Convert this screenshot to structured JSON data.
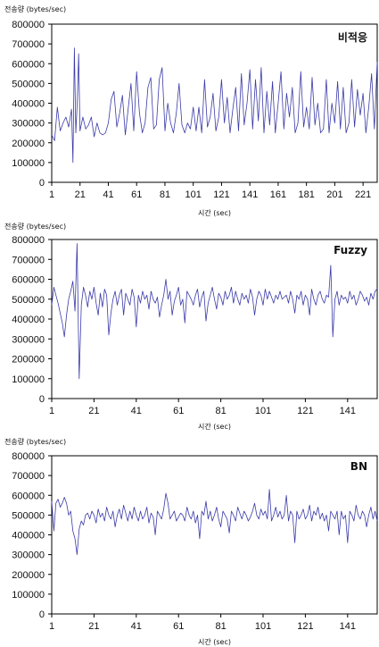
{
  "chart_data": [
    {
      "type": "line",
      "title": "비적응",
      "ylabel": "전송량 (bytes/sec)",
      "xlabel": "시간 (sec)",
      "ylim": [
        0,
        800000
      ],
      "xlim": [
        1,
        231
      ],
      "y_ticks": [
        "0",
        "100000",
        "200000",
        "300000",
        "400000",
        "500000",
        "600000",
        "700000",
        "800000"
      ],
      "x_ticks": [
        "1",
        "21",
        "41",
        "61",
        "81",
        "101",
        "121",
        "141",
        "161",
        "181",
        "201",
        "221"
      ],
      "grid": false,
      "series": [
        {
          "color": "#3a3aa8",
          "x": [
            1,
            3,
            5,
            7,
            9,
            11,
            13,
            15,
            16,
            17,
            18,
            19,
            20,
            21,
            23,
            25,
            27,
            29,
            31,
            33,
            35,
            37,
            39,
            41,
            43,
            45,
            47,
            49,
            51,
            53,
            55,
            57,
            59,
            61,
            63,
            65,
            67,
            69,
            71,
            73,
            75,
            77,
            79,
            81,
            83,
            85,
            87,
            89,
            91,
            93,
            95,
            97,
            99,
            101,
            103,
            105,
            107,
            109,
            111,
            113,
            115,
            117,
            119,
            121,
            123,
            125,
            127,
            129,
            131,
            133,
            135,
            137,
            139,
            141,
            143,
            145,
            147,
            149,
            151,
            153,
            155,
            157,
            159,
            161,
            163,
            165,
            167,
            169,
            171,
            173,
            175,
            177,
            179,
            181,
            183,
            185,
            187,
            189,
            191,
            193,
            195,
            197,
            199,
            201,
            203,
            205,
            207,
            209,
            211,
            213,
            215,
            217,
            219,
            221,
            223,
            225,
            227,
            229,
            231
          ],
          "values": [
            240000,
            210000,
            380000,
            260000,
            300000,
            330000,
            280000,
            370000,
            100000,
            680000,
            250000,
            400000,
            650000,
            260000,
            330000,
            270000,
            290000,
            330000,
            230000,
            300000,
            250000,
            240000,
            250000,
            300000,
            420000,
            460000,
            280000,
            350000,
            440000,
            240000,
            370000,
            500000,
            260000,
            560000,
            350000,
            250000,
            300000,
            480000,
            530000,
            270000,
            290000,
            520000,
            580000,
            260000,
            400000,
            300000,
            250000,
            350000,
            500000,
            290000,
            250000,
            300000,
            270000,
            380000,
            260000,
            380000,
            250000,
            520000,
            280000,
            330000,
            450000,
            260000,
            330000,
            520000,
            300000,
            430000,
            250000,
            370000,
            480000,
            260000,
            550000,
            290000,
            400000,
            570000,
            270000,
            520000,
            310000,
            580000,
            250000,
            460000,
            290000,
            510000,
            250000,
            400000,
            560000,
            270000,
            450000,
            330000,
            480000,
            250000,
            300000,
            560000,
            280000,
            380000,
            270000,
            530000,
            290000,
            400000,
            250000,
            270000,
            520000,
            250000,
            400000,
            300000,
            510000,
            270000,
            480000,
            250000,
            300000,
            520000,
            280000,
            470000,
            340000,
            450000,
            250000,
            380000,
            550000,
            270000,
            610000
          ]
        }
      ]
    },
    {
      "type": "line",
      "title": "Fuzzy",
      "ylabel": "전송량 (bytes/sec)",
      "xlabel": "시간 (sec)",
      "ylim": [
        0,
        800000
      ],
      "xlim": [
        1,
        155
      ],
      "y_ticks": [
        "0",
        "100000",
        "200000",
        "300000",
        "400000",
        "500000",
        "600000",
        "700000",
        "800000"
      ],
      "x_ticks": [
        "1",
        "21",
        "41",
        "61",
        "81",
        "101",
        "121",
        "141"
      ],
      "grid": false,
      "series": [
        {
          "color": "#3a3aa8",
          "x": [
            1,
            2,
            3,
            4,
            5,
            6,
            7,
            8,
            9,
            10,
            11,
            12,
            13,
            14,
            15,
            16,
            17,
            18,
            19,
            20,
            21,
            22,
            23,
            24,
            25,
            26,
            27,
            28,
            29,
            30,
            31,
            32,
            33,
            34,
            35,
            36,
            37,
            38,
            39,
            40,
            41,
            42,
            43,
            44,
            45,
            46,
            47,
            48,
            49,
            50,
            51,
            52,
            53,
            54,
            55,
            56,
            57,
            58,
            59,
            60,
            61,
            62,
            63,
            64,
            65,
            66,
            67,
            68,
            69,
            70,
            71,
            72,
            73,
            74,
            75,
            76,
            77,
            78,
            79,
            80,
            81,
            82,
            83,
            84,
            85,
            86,
            87,
            88,
            89,
            90,
            91,
            92,
            93,
            94,
            95,
            96,
            97,
            98,
            99,
            100,
            101,
            102,
            103,
            104,
            105,
            106,
            107,
            108,
            109,
            110,
            111,
            112,
            113,
            114,
            115,
            116,
            117,
            118,
            119,
            120,
            121,
            122,
            123,
            124,
            125,
            126,
            127,
            128,
            129,
            130,
            131,
            132,
            133,
            134,
            135,
            136,
            137,
            138,
            139,
            140,
            141,
            142,
            143,
            144,
            145,
            146,
            147,
            148,
            149,
            150,
            151,
            152,
            153,
            154,
            155
          ],
          "values": [
            470000,
            560000,
            520000,
            480000,
            430000,
            380000,
            310000,
            420000,
            500000,
            540000,
            590000,
            440000,
            780000,
            100000,
            470000,
            560000,
            520000,
            460000,
            540000,
            500000,
            560000,
            480000,
            420000,
            530000,
            460000,
            550000,
            520000,
            320000,
            430000,
            500000,
            540000,
            470000,
            520000,
            550000,
            420000,
            530000,
            500000,
            470000,
            550000,
            510000,
            360000,
            520000,
            480000,
            540000,
            500000,
            520000,
            450000,
            540000,
            500000,
            480000,
            510000,
            410000,
            470000,
            520000,
            600000,
            500000,
            540000,
            420000,
            490000,
            520000,
            560000,
            470000,
            500000,
            380000,
            540000,
            520000,
            500000,
            470000,
            520000,
            550000,
            460000,
            510000,
            540000,
            390000,
            480000,
            520000,
            560000,
            500000,
            450000,
            530000,
            510000,
            470000,
            540000,
            500000,
            520000,
            560000,
            480000,
            540000,
            500000,
            470000,
            530000,
            500000,
            520000,
            480000,
            550000,
            510000,
            420000,
            500000,
            540000,
            520000,
            470000,
            550000,
            500000,
            540000,
            510000,
            480000,
            520000,
            500000,
            540000,
            500000,
            510000,
            520000,
            480000,
            540000,
            500000,
            430000,
            520000,
            500000,
            540000,
            470000,
            520000,
            500000,
            420000,
            550000,
            500000,
            470000,
            520000,
            540000,
            500000,
            480000,
            520000,
            510000,
            670000,
            310000,
            500000,
            540000,
            470000,
            520000,
            500000,
            510000,
            480000,
            540000,
            500000,
            520000,
            470000,
            500000,
            540000,
            520000,
            490000,
            510000,
            470000,
            530000,
            500000,
            540000,
            550000
          ]
        }
      ]
    },
    {
      "type": "line",
      "title": "BN",
      "ylabel": "전송량 (bytes/sec)",
      "xlabel": "시간 (sec)",
      "ylim": [
        0,
        800000
      ],
      "xlim": [
        1,
        155
      ],
      "y_ticks": [
        "0",
        "100000",
        "200000",
        "300000",
        "400000",
        "500000",
        "600000",
        "700000",
        "800000"
      ],
      "x_ticks": [
        "1",
        "21",
        "41",
        "61",
        "81",
        "101",
        "121",
        "141"
      ],
      "grid": false,
      "series": [
        {
          "color": "#3a3aa8",
          "x": [
            1,
            2,
            3,
            4,
            5,
            6,
            7,
            8,
            9,
            10,
            11,
            12,
            13,
            14,
            15,
            16,
            17,
            18,
            19,
            20,
            21,
            22,
            23,
            24,
            25,
            26,
            27,
            28,
            29,
            30,
            31,
            32,
            33,
            34,
            35,
            36,
            37,
            38,
            39,
            40,
            41,
            42,
            43,
            44,
            45,
            46,
            47,
            48,
            49,
            50,
            51,
            52,
            53,
            54,
            55,
            56,
            57,
            58,
            59,
            60,
            61,
            62,
            63,
            64,
            65,
            66,
            67,
            68,
            69,
            70,
            71,
            72,
            73,
            74,
            75,
            76,
            77,
            78,
            79,
            80,
            81,
            82,
            83,
            84,
            85,
            86,
            87,
            88,
            89,
            90,
            91,
            92,
            93,
            94,
            95,
            96,
            97,
            98,
            99,
            100,
            101,
            102,
            103,
            104,
            105,
            106,
            107,
            108,
            109,
            110,
            111,
            112,
            113,
            114,
            115,
            116,
            117,
            118,
            119,
            120,
            121,
            122,
            123,
            124,
            125,
            126,
            127,
            128,
            129,
            130,
            131,
            132,
            133,
            134,
            135,
            136,
            137,
            138,
            139,
            140,
            141,
            142,
            143,
            144,
            145,
            146,
            147,
            148,
            149,
            150,
            151,
            152,
            153,
            154,
            155
          ],
          "values": [
            570000,
            420000,
            560000,
            580000,
            540000,
            560000,
            590000,
            560000,
            500000,
            520000,
            420000,
            380000,
            300000,
            430000,
            470000,
            450000,
            500000,
            510000,
            480000,
            520000,
            500000,
            460000,
            530000,
            490000,
            510000,
            470000,
            540000,
            500000,
            480000,
            520000,
            440000,
            500000,
            530000,
            480000,
            550000,
            510000,
            470000,
            520000,
            480000,
            540000,
            500000,
            470000,
            520000,
            480000,
            500000,
            540000,
            460000,
            510000,
            490000,
            400000,
            520000,
            500000,
            480000,
            530000,
            610000,
            560000,
            480000,
            500000,
            520000,
            470000,
            490000,
            510000,
            500000,
            470000,
            540000,
            500000,
            480000,
            520000,
            460000,
            500000,
            380000,
            520000,
            500000,
            570000,
            480000,
            520000,
            470000,
            500000,
            540000,
            480000,
            440000,
            520000,
            500000,
            480000,
            410000,
            520000,
            500000,
            470000,
            540000,
            510000,
            480000,
            520000,
            500000,
            470000,
            490000,
            520000,
            560000,
            500000,
            480000,
            530000,
            500000,
            520000,
            480000,
            630000,
            470000,
            500000,
            540000,
            490000,
            520000,
            480000,
            500000,
            600000,
            470000,
            520000,
            500000,
            360000,
            520000,
            480000,
            500000,
            530000,
            480000,
            500000,
            550000,
            470000,
            520000,
            500000,
            540000,
            480000,
            510000,
            470000,
            500000,
            420000,
            520000,
            500000,
            480000,
            520000,
            400000,
            520000,
            480000,
            500000,
            360000,
            520000,
            500000,
            470000,
            550000,
            500000,
            480000,
            520000,
            500000,
            440000,
            500000,
            540000,
            480000,
            520000,
            470000
          ]
        }
      ]
    }
  ]
}
